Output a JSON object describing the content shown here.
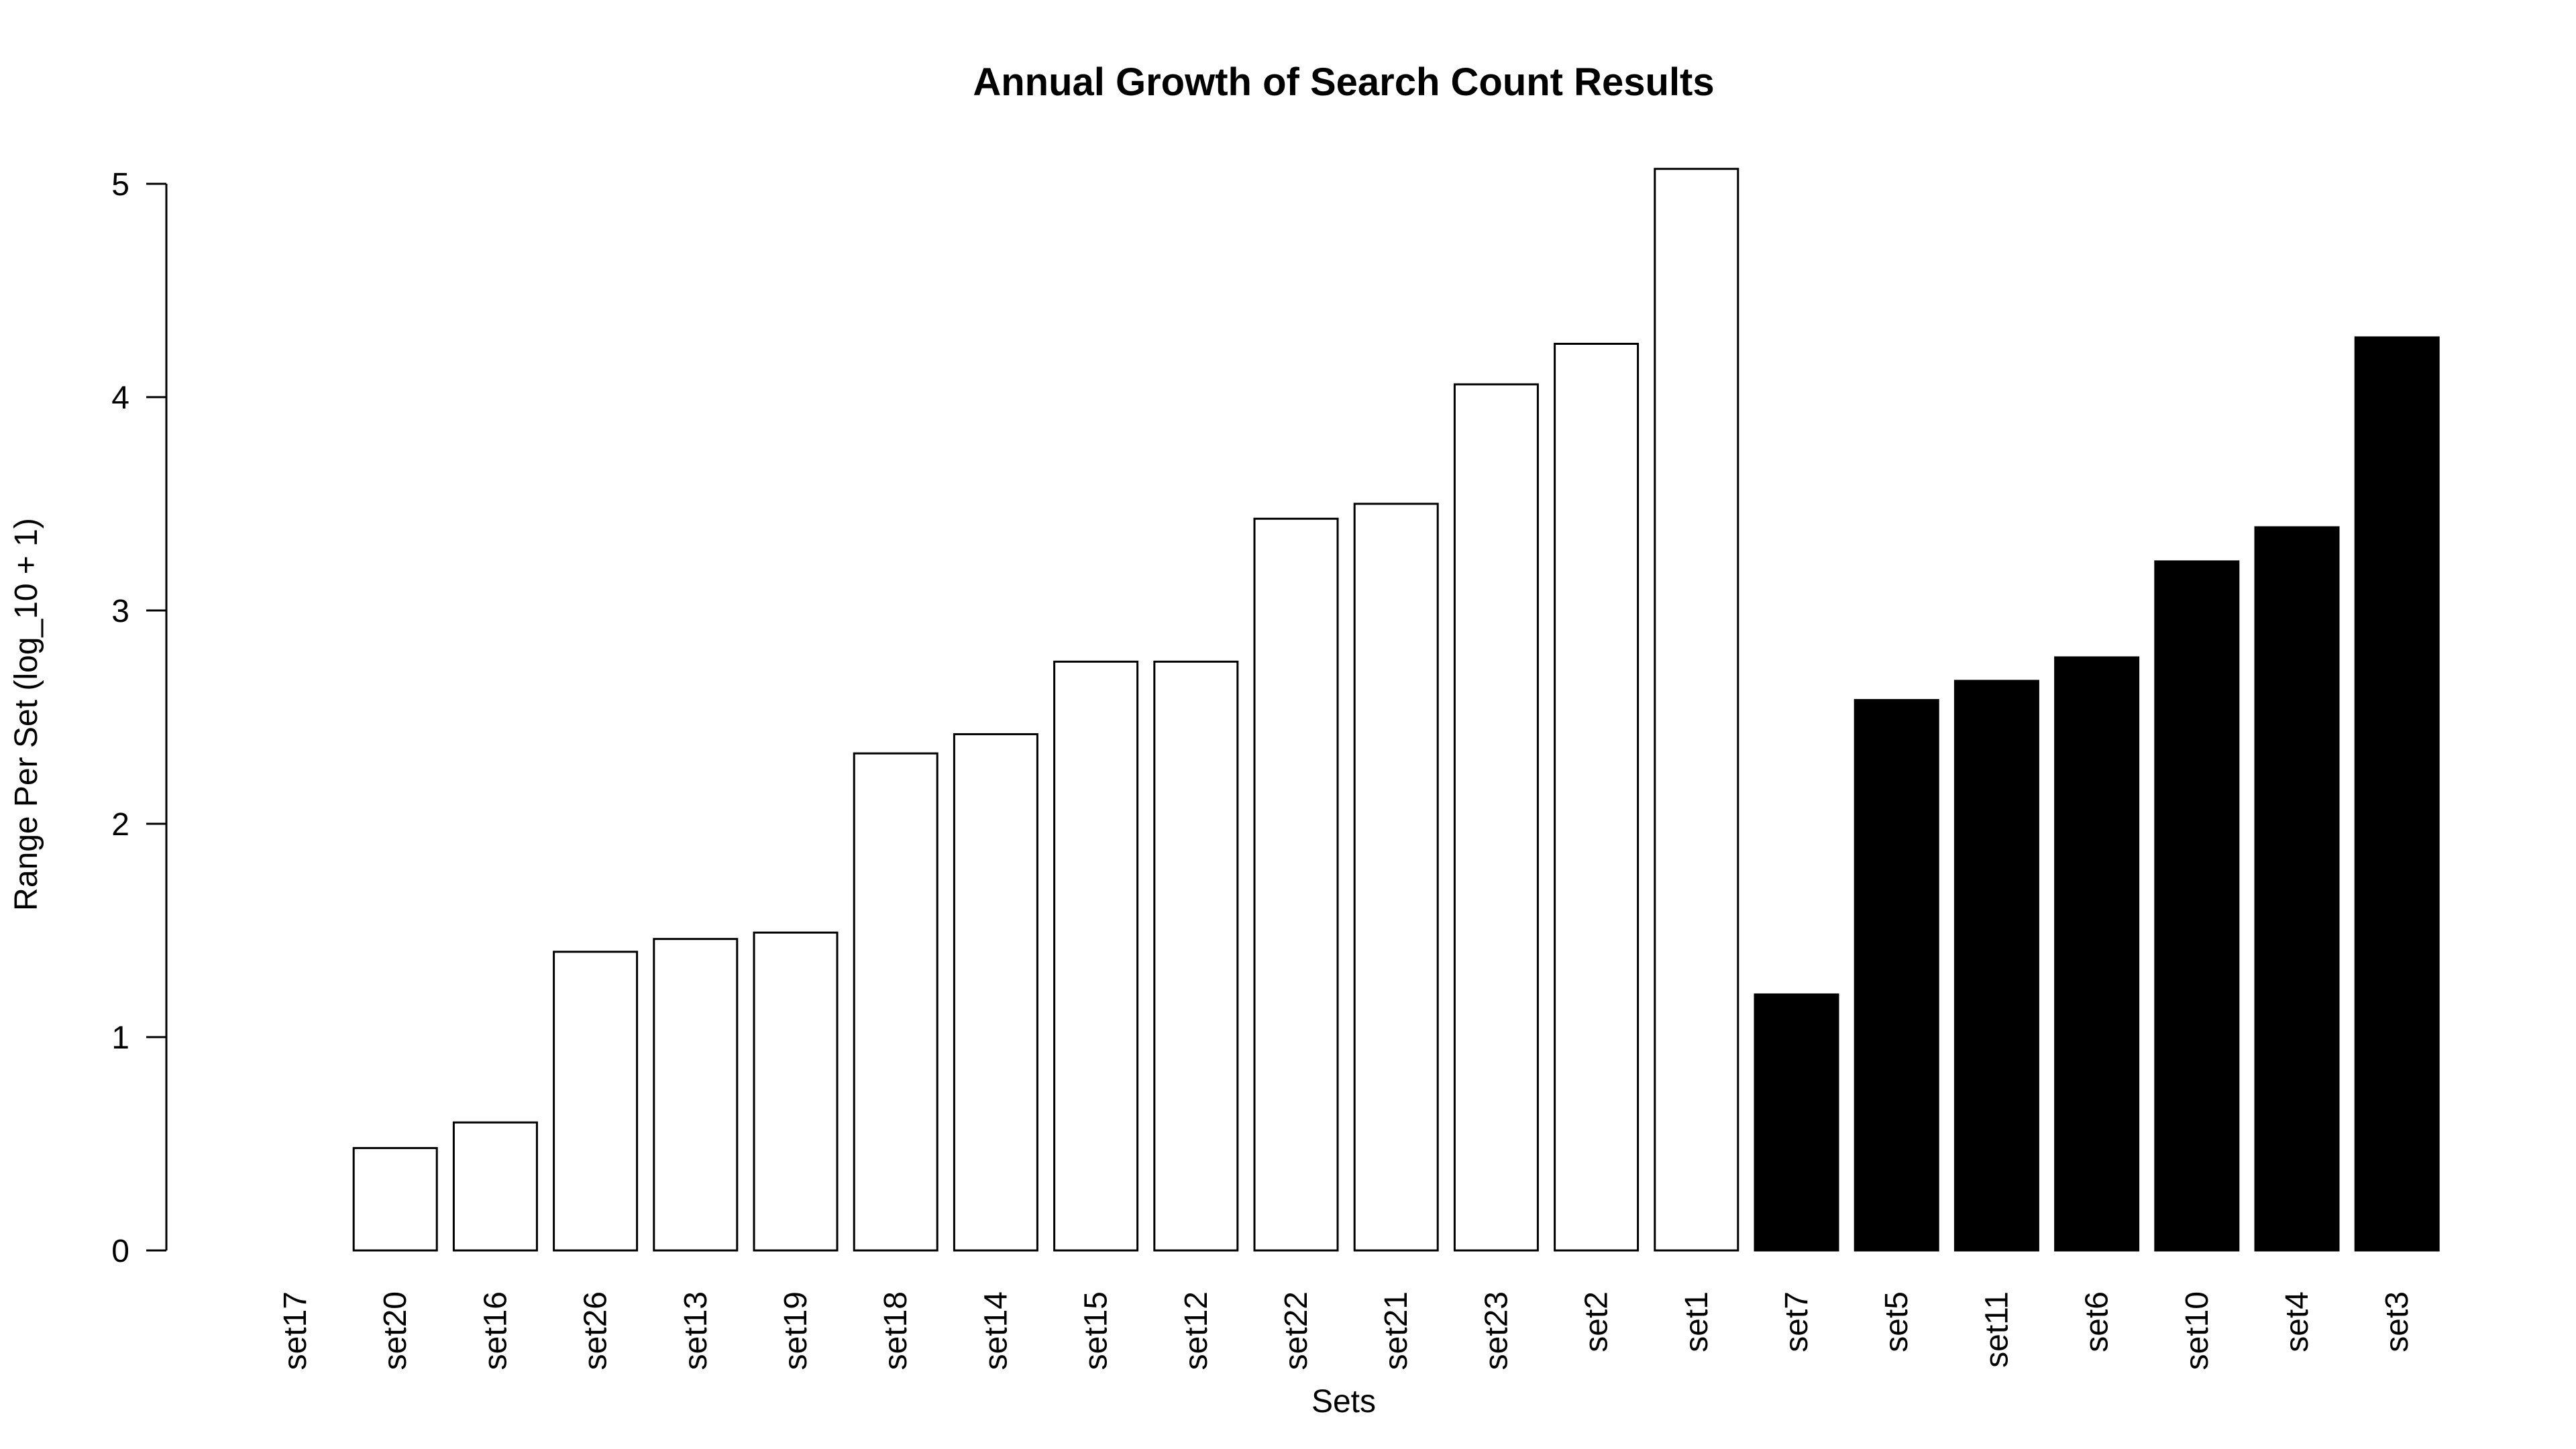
{
  "chart_data": {
    "type": "bar",
    "title": "Annual Growth of Search Count Results",
    "xlabel": "Sets",
    "ylabel": "Range Per Set (log_10 + 1)",
    "ylim": [
      0,
      5
    ],
    "yticks": [
      0,
      1,
      2,
      3,
      4,
      5
    ],
    "grid": false,
    "legend": "none",
    "categories": [
      "set17",
      "set20",
      "set16",
      "set26",
      "set13",
      "set19",
      "set18",
      "set14",
      "set15",
      "set12",
      "set22",
      "set21",
      "set23",
      "set2",
      "set1",
      "set7",
      "set5",
      "set11",
      "set6",
      "set10",
      "set4",
      "set3"
    ],
    "values": [
      0.0,
      0.48,
      0.6,
      1.4,
      1.46,
      1.49,
      2.33,
      2.42,
      2.76,
      2.76,
      3.43,
      3.5,
      4.06,
      4.25,
      5.07,
      1.2,
      2.58,
      2.67,
      2.78,
      3.23,
      3.39,
      4.28
    ],
    "bar_fills": [
      "#ffffff",
      "#ffffff",
      "#ffffff",
      "#ffffff",
      "#ffffff",
      "#ffffff",
      "#ffffff",
      "#ffffff",
      "#ffffff",
      "#ffffff",
      "#ffffff",
      "#ffffff",
      "#ffffff",
      "#ffffff",
      "#ffffff",
      "#000000",
      "#000000",
      "#000000",
      "#000000",
      "#000000",
      "#000000",
      "#000000"
    ],
    "bar_stroke": "#000000"
  }
}
